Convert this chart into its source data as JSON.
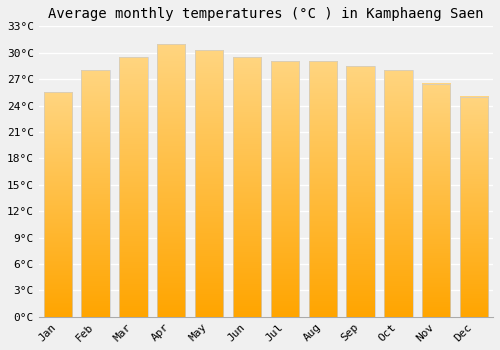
{
  "title": "Average monthly temperatures (°C ) in Kamphaeng Saen",
  "months": [
    "Jan",
    "Feb",
    "Mar",
    "Apr",
    "May",
    "Jun",
    "Jul",
    "Aug",
    "Sep",
    "Oct",
    "Nov",
    "Dec"
  ],
  "values": [
    25.5,
    28.0,
    29.5,
    31.0,
    30.3,
    29.5,
    29.0,
    29.0,
    28.5,
    28.0,
    26.5,
    25.0
  ],
  "bar_color_top": "#FFA500",
  "bar_color_bottom": "#FFD580",
  "ylim": [
    0,
    33
  ],
  "yticks": [
    0,
    3,
    6,
    9,
    12,
    15,
    18,
    21,
    24,
    27,
    30,
    33
  ],
  "ytick_labels": [
    "0°C",
    "3°C",
    "6°C",
    "9°C",
    "12°C",
    "15°C",
    "18°C",
    "21°C",
    "24°C",
    "27°C",
    "30°C",
    "33°C"
  ],
  "background_color": "#f0f0f0",
  "grid_color": "#ffffff",
  "bar_edge_color": "#cccccc",
  "title_fontsize": 10,
  "tick_fontsize": 8,
  "font_family": "monospace"
}
